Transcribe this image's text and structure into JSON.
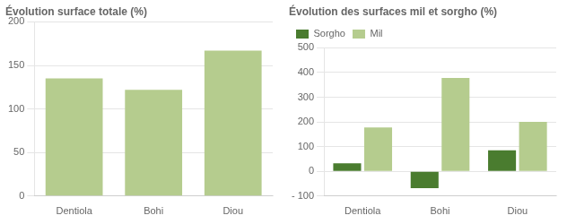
{
  "chart_data": [
    {
      "type": "bar",
      "title": "Évolution surface totale (%)",
      "categories": [
        "Dentiola",
        "Bohi",
        "Diou"
      ],
      "values": [
        135,
        122,
        167
      ],
      "color": "#b5cc8e",
      "ylim": [
        0,
        200
      ],
      "yticks": [
        0,
        50,
        100,
        150,
        200
      ],
      "grid": true
    },
    {
      "type": "bar",
      "title": "Évolution des surfaces mil et sorgho (%)",
      "categories": [
        "Dentiola",
        "Bohi",
        "Diou"
      ],
      "series": [
        {
          "name": "Sorgho",
          "color": "#4a7c2f",
          "values": [
            33,
            -68,
            85
          ]
        },
        {
          "name": "Mil",
          "color": "#b5cc8e",
          "values": [
            178,
            378,
            200
          ]
        }
      ],
      "ylim": [
        -100,
        500
      ],
      "yticks": [
        {
          "value": -100,
          "label": "- 100"
        },
        0,
        100,
        200,
        300,
        400,
        500
      ],
      "grid": true,
      "legend": "upper left"
    }
  ]
}
